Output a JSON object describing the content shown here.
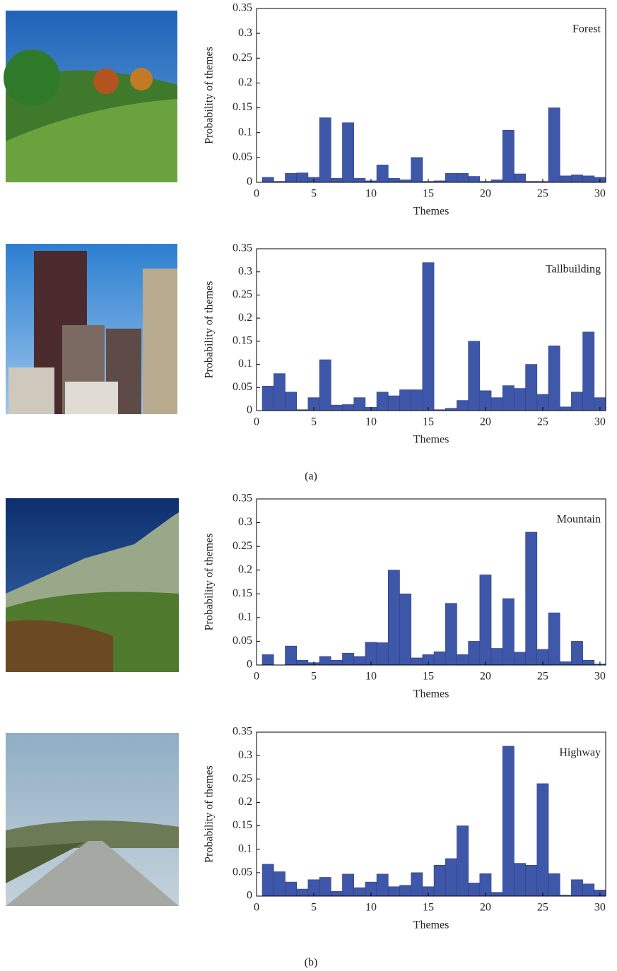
{
  "chart_data": [
    {
      "type": "bar",
      "annotation": "Forest",
      "xlabel": "Themes",
      "ylabel": "Probability of themes",
      "color": "#3f57a8",
      "x": [
        1,
        2,
        3,
        4,
        5,
        6,
        7,
        8,
        9,
        10,
        11,
        12,
        13,
        14,
        15,
        16,
        17,
        18,
        19,
        20,
        21,
        22,
        23,
        24,
        25,
        26,
        27,
        28,
        29,
        30
      ],
      "values": [
        0.01,
        0.002,
        0.018,
        0.019,
        0.01,
        0.13,
        0.008,
        0.12,
        0.008,
        0.003,
        0.035,
        0.008,
        0.005,
        0.05,
        0.002,
        0.003,
        0.018,
        0.018,
        0.012,
        0.002,
        0.005,
        0.105,
        0.017,
        0.002,
        0.002,
        0.15,
        0.013,
        0.015,
        0.013,
        0.01
      ],
      "xlim": [
        0,
        30.5
      ],
      "ylim": [
        0,
        0.35
      ],
      "xticks": [
        0,
        5,
        10,
        15,
        20,
        25,
        30
      ],
      "yticks": [
        0,
        0.05,
        0.1,
        0.15,
        0.2,
        0.25,
        0.3,
        0.35
      ]
    },
    {
      "type": "bar",
      "annotation": "Tallbuilding",
      "xlabel": "Themes",
      "ylabel": "Probability of themes",
      "color": "#3f57a8",
      "x": [
        1,
        2,
        3,
        4,
        5,
        6,
        7,
        8,
        9,
        10,
        11,
        12,
        13,
        14,
        15,
        16,
        17,
        18,
        19,
        20,
        21,
        22,
        23,
        24,
        25,
        26,
        27,
        28,
        29,
        30
      ],
      "values": [
        0.053,
        0.08,
        0.04,
        0.002,
        0.028,
        0.11,
        0.012,
        0.013,
        0.028,
        0.007,
        0.04,
        0.032,
        0.045,
        0.045,
        0.32,
        0.002,
        0.005,
        0.022,
        0.15,
        0.043,
        0.028,
        0.054,
        0.048,
        0.1,
        0.035,
        0.14,
        0.008,
        0.04,
        0.17,
        0.028
      ],
      "xlim": [
        0,
        30.5
      ],
      "ylim": [
        0,
        0.35
      ],
      "xticks": [
        0,
        5,
        10,
        15,
        20,
        25,
        30
      ],
      "yticks": [
        0,
        0.05,
        0.1,
        0.15,
        0.2,
        0.25,
        0.3,
        0.35
      ]
    },
    {
      "type": "bar",
      "annotation": "Mountain",
      "xlabel": "Themes",
      "ylabel": "Probability of themes",
      "color": "#3f57a8",
      "x": [
        1,
        2,
        3,
        4,
        5,
        6,
        7,
        8,
        9,
        10,
        11,
        12,
        13,
        14,
        15,
        16,
        17,
        18,
        19,
        20,
        21,
        22,
        23,
        24,
        25,
        26,
        27,
        28,
        29,
        30
      ],
      "values": [
        0.022,
        0,
        0.04,
        0.01,
        0.005,
        0.018,
        0.01,
        0.025,
        0.018,
        0.048,
        0.047,
        0.2,
        0.15,
        0.015,
        0.022,
        0.028,
        0.13,
        0.022,
        0.05,
        0.19,
        0.035,
        0.14,
        0.027,
        0.28,
        0.033,
        0.11,
        0.007,
        0.05,
        0.01,
        0.002
      ],
      "xlim": [
        0,
        30.5
      ],
      "ylim": [
        0,
        0.35
      ],
      "xticks": [
        0,
        5,
        10,
        15,
        20,
        25,
        30
      ],
      "yticks": [
        0,
        0.05,
        0.1,
        0.15,
        0.2,
        0.25,
        0.3,
        0.35
      ]
    },
    {
      "type": "bar",
      "annotation": "Highway",
      "xlabel": "Themes",
      "ylabel": "Probability of themes",
      "color": "#3f57a8",
      "x": [
        1,
        2,
        3,
        4,
        5,
        6,
        7,
        8,
        9,
        10,
        11,
        12,
        13,
        14,
        15,
        16,
        17,
        18,
        19,
        20,
        21,
        22,
        23,
        24,
        25,
        26,
        27,
        28,
        29,
        30
      ],
      "values": [
        0.068,
        0.052,
        0.03,
        0.015,
        0.035,
        0.04,
        0.01,
        0.047,
        0.018,
        0.03,
        0.047,
        0.02,
        0.023,
        0.05,
        0.02,
        0.066,
        0.08,
        0.15,
        0.028,
        0.048,
        0.008,
        0.32,
        0.07,
        0.066,
        0.24,
        0.048,
        0.002,
        0.035,
        0.026,
        0.013
      ],
      "xlim": [
        0,
        30.5
      ],
      "ylim": [
        0,
        0.35
      ],
      "xticks": [
        0,
        5,
        10,
        15,
        20,
        25,
        30
      ],
      "yticks": [
        0,
        0.05,
        0.1,
        0.15,
        0.2,
        0.25,
        0.3,
        0.35
      ]
    }
  ],
  "captions": [
    "(a)",
    "(b)"
  ]
}
